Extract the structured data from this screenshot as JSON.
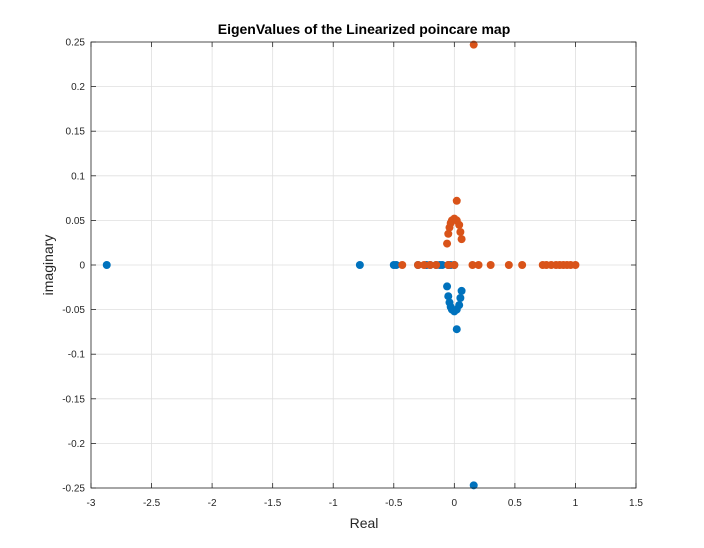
{
  "chart_data": {
    "type": "scatter",
    "title": "EigenValues of the Linearized poincare map",
    "xlabel": "Real",
    "ylabel": "imaginary",
    "xlim": [
      -3,
      1.5
    ],
    "ylim": [
      -0.25,
      0.25
    ],
    "xticks": [
      "-3",
      "-2.5",
      "-2",
      "-1.5",
      "-1",
      "-0.5",
      "0",
      "0.5",
      "1",
      "1.5"
    ],
    "yticks": [
      "-0.25",
      "-0.2",
      "-0.15",
      "-0.1",
      "-0.05",
      "0",
      "0.05",
      "0.1",
      "0.15",
      "0.2",
      "0.25"
    ],
    "grid": true,
    "legend": "none",
    "series": [
      {
        "color": "#0072BD",
        "points": [
          [
            -2.87,
            0
          ],
          [
            -0.78,
            0
          ],
          [
            -0.5,
            0
          ],
          [
            -0.48,
            0
          ],
          [
            -0.3,
            0
          ],
          [
            -0.23,
            0
          ],
          [
            -0.2,
            0
          ],
          [
            -0.15,
            0
          ],
          [
            -0.12,
            0
          ],
          [
            -0.1,
            0
          ],
          [
            -0.05,
            0
          ],
          [
            -0.03,
            0
          ],
          [
            0.0,
            0
          ],
          [
            -0.06,
            -0.024
          ],
          [
            -0.05,
            -0.035
          ],
          [
            -0.04,
            -0.042
          ],
          [
            -0.03,
            -0.047
          ],
          [
            -0.02,
            -0.05
          ],
          [
            0.0,
            -0.052
          ],
          [
            0.02,
            -0.05
          ],
          [
            0.04,
            -0.045
          ],
          [
            0.05,
            -0.037
          ],
          [
            0.06,
            -0.029
          ],
          [
            0.02,
            -0.072
          ],
          [
            0.16,
            -0.247
          ]
        ]
      },
      {
        "color": "#D95319",
        "points": [
          [
            -0.43,
            0
          ],
          [
            -0.3,
            0
          ],
          [
            -0.25,
            0
          ],
          [
            -0.2,
            0
          ],
          [
            -0.15,
            0
          ],
          [
            -0.05,
            0
          ],
          [
            0.0,
            0
          ],
          [
            0.15,
            0
          ],
          [
            0.2,
            0
          ],
          [
            0.3,
            0
          ],
          [
            0.45,
            0
          ],
          [
            0.56,
            0
          ],
          [
            0.73,
            0
          ],
          [
            0.76,
            0
          ],
          [
            0.8,
            0
          ],
          [
            0.84,
            0
          ],
          [
            0.87,
            0
          ],
          [
            0.9,
            0
          ],
          [
            0.93,
            0
          ],
          [
            0.96,
            0
          ],
          [
            1.0,
            0
          ],
          [
            -0.06,
            0.024
          ],
          [
            -0.05,
            0.035
          ],
          [
            -0.04,
            0.042
          ],
          [
            -0.03,
            0.047
          ],
          [
            -0.02,
            0.05
          ],
          [
            0.0,
            0.052
          ],
          [
            0.02,
            0.05
          ],
          [
            0.04,
            0.045
          ],
          [
            0.05,
            0.037
          ],
          [
            0.06,
            0.029
          ],
          [
            0.02,
            0.072
          ],
          [
            0.16,
            0.247
          ]
        ]
      }
    ]
  }
}
